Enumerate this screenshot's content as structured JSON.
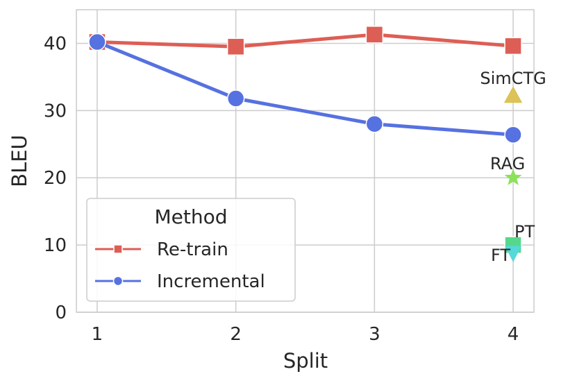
{
  "chart_data": {
    "type": "line",
    "xlabel": "Split",
    "ylabel": "BLEU",
    "x": [
      1,
      2,
      3,
      4
    ],
    "xticks": [
      "1",
      "2",
      "3",
      "4"
    ],
    "yticks": [
      "0",
      "10",
      "20",
      "30",
      "40"
    ],
    "xlim": [
      0.85,
      4.15
    ],
    "ylim": [
      0,
      45
    ],
    "grid": true,
    "legend": {
      "title": "Method",
      "placement": "lower-left"
    },
    "series": [
      {
        "name": "Re-train",
        "color": "#dd5e55",
        "marker": "square",
        "values": [
          40.2,
          39.5,
          41.3,
          39.6
        ]
      },
      {
        "name": "Incremental",
        "color": "#5671e0",
        "marker": "circle",
        "values": [
          40.2,
          31.8,
          28.0,
          26.4
        ]
      }
    ],
    "annotations": [
      {
        "label": "SimCTG",
        "x": 4,
        "y": 32.2,
        "marker": "triangle",
        "color": "#dcc257"
      },
      {
        "label": "RAG",
        "x": 4,
        "y": 20.0,
        "marker": "star",
        "color": "#8de15a"
      },
      {
        "label": "PT",
        "x": 4,
        "y": 10.0,
        "marker": "square",
        "color": "#55d88c"
      },
      {
        "label": "FT",
        "x": 4,
        "y": 9.0,
        "marker": "triangle-down",
        "color": "#55d8d8"
      }
    ]
  }
}
